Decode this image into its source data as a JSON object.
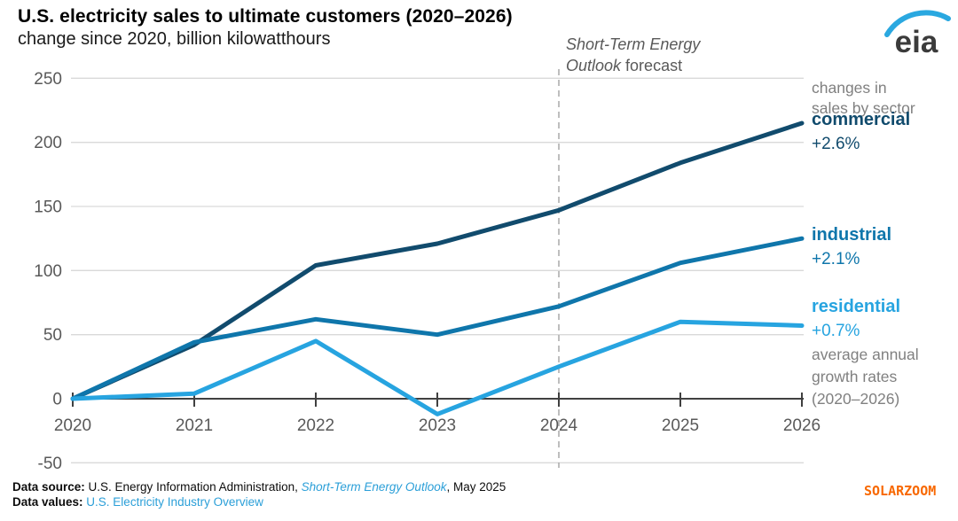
{
  "chart_data": {
    "type": "line",
    "title": "U.S. electricity sales to ultimate customers (2020–2026)",
    "subtitle": "change since 2020, billion kilowatthours",
    "units": "billion kilowatthours",
    "categories": [
      "2020",
      "2021",
      "2022",
      "2023",
      "2024",
      "2025",
      "2026"
    ],
    "series": [
      {
        "name": "commercial",
        "annual_growth": "+2.6%",
        "color": "#114b6d",
        "values": [
          0,
          42,
          104,
          121,
          147,
          184,
          215
        ]
      },
      {
        "name": "industrial",
        "annual_growth": "+2.1%",
        "color": "#0f76ab",
        "values": [
          0,
          44,
          62,
          50,
          72,
          106,
          125
        ]
      },
      {
        "name": "residential",
        "annual_growth": "+0.7%",
        "color": "#27a4e0",
        "values": [
          0,
          4,
          45,
          -12,
          25,
          60,
          57
        ]
      }
    ],
    "y_ticks": [
      250,
      200,
      150,
      100,
      50,
      0,
      -50
    ],
    "ylim": [
      -50,
      250
    ],
    "xlabel": "",
    "ylabel": "change since 2020, billion kilowatthours",
    "grid": true,
    "legend_position": "right",
    "forecast_start": "2024"
  },
  "logo": {
    "text": "eia"
  },
  "forecast_label": {
    "line1": "Short-Term Energy",
    "line2_italic": "Outlook",
    "line2_regular": " forecast"
  },
  "annotations": {
    "sector_note_line1": "changes in",
    "sector_note_line2": "sales by sector",
    "growth_note_line1": "average annual",
    "growth_note_line2": "growth rates",
    "growth_note_line3": "(2020–2026)"
  },
  "footer": {
    "source_label": "Data source:",
    "source_text": " U.S. Energy Information Administration, ",
    "source_link": "Short-Term Energy Outlook",
    "source_suffix": ", May 2025",
    "values_label": "Data values: ",
    "values_link": "U.S. Electricity Industry Overview"
  },
  "watermark": "SOLARZOOM",
  "colors": {
    "accent_blue": "#2aa8e0",
    "grid": "#d9d9d9",
    "axis": "#404040",
    "text_gray": "#595959",
    "note_gray": "#808080",
    "link_blue": "#2b9fd8",
    "watermark_orange": "#f86800",
    "title_black": "#000000",
    "forecast_line": "#a9a9a9",
    "logo_text": "#3b3b3b"
  }
}
